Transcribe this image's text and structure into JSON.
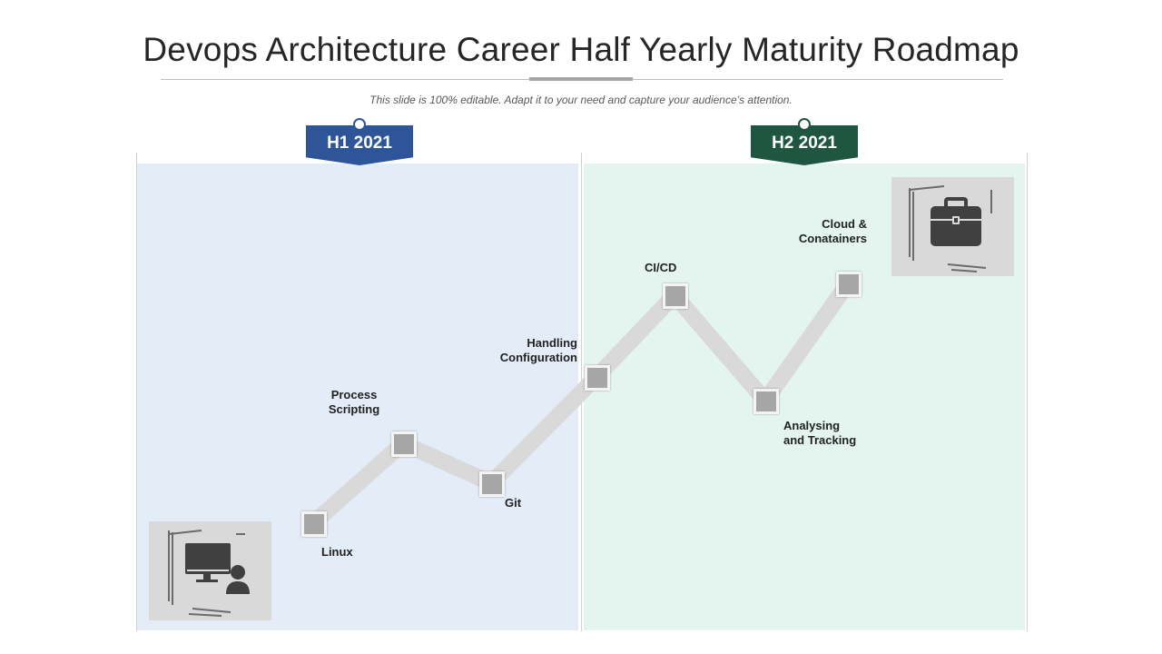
{
  "slide": {
    "title": "Devops Architecture Career Half Yearly Maturity Roadmap",
    "subtitle": "This slide is 100% editable. Adapt it to your need and capture your audience’s attention."
  },
  "periods": [
    {
      "label": "H1 2021",
      "color": "#2e5597",
      "panel_color": "#e4ecf7"
    },
    {
      "label": "H2 2021",
      "color": "#1f5641",
      "panel_color": "#e4f5f0"
    }
  ],
  "milestones": [
    {
      "name": "linux",
      "label": "Linux"
    },
    {
      "name": "process-scripting",
      "label": "Process\nScripting"
    },
    {
      "name": "git",
      "label": "Git"
    },
    {
      "name": "handling-configuration",
      "label": "Handling\nConfiguration"
    },
    {
      "name": "ci-cd",
      "label": "CI/CD"
    },
    {
      "name": "analysing-tracking",
      "label": "Analysing\nand Tracking"
    },
    {
      "name": "cloud-containers",
      "label": "Cloud &\nConatainers"
    }
  ],
  "icons": {
    "start": "computer-user-icon",
    "end": "briefcase-icon"
  },
  "colors": {
    "path": "#d9d9d9",
    "node": "#a6a6a6",
    "icon_bg": "#d9d9d9",
    "icon_fg": "#404040"
  }
}
